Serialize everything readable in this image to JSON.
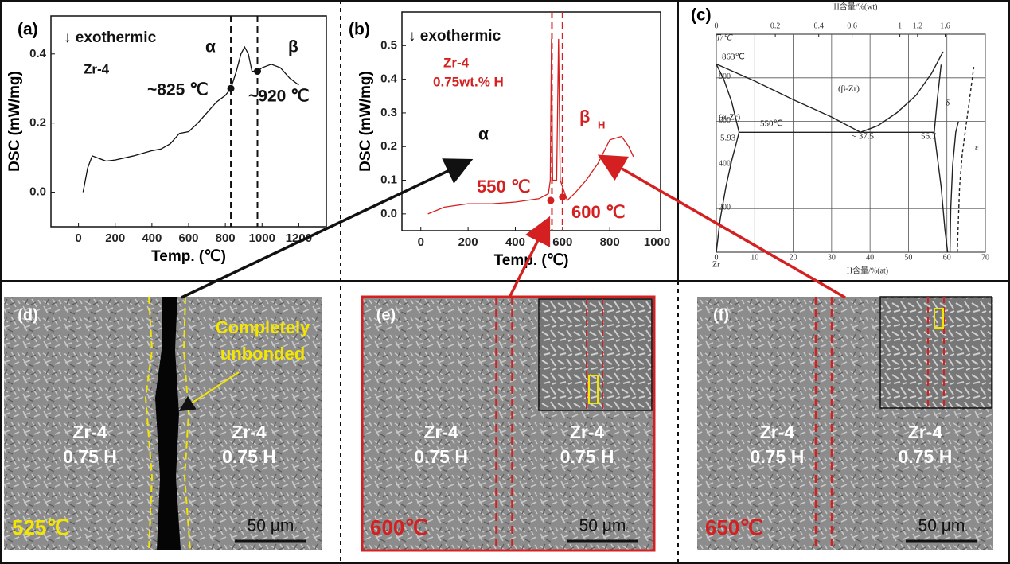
{
  "chart_data": [
    {
      "type": "line",
      "panel": "(a)",
      "xlabel": "Temp. (℃)",
      "ylabel": "DSC (mW/mg)",
      "x": [
        25,
        50,
        75,
        100,
        150,
        200,
        300,
        400,
        450,
        500,
        550,
        600,
        650,
        700,
        750,
        800,
        830,
        860,
        885,
        905,
        925,
        945,
        975,
        1000,
        1050,
        1100,
        1150,
        1200
      ],
      "values": [
        0.0,
        0.07,
        0.105,
        0.1,
        0.09,
        0.093,
        0.105,
        0.12,
        0.125,
        0.14,
        0.17,
        0.175,
        0.2,
        0.23,
        0.26,
        0.28,
        0.3,
        0.35,
        0.4,
        0.42,
        0.4,
        0.35,
        0.35,
        0.36,
        0.37,
        0.36,
        0.33,
        0.31
      ],
      "color": "#111111",
      "xlim": [
        -150,
        1350
      ],
      "ylim": [
        -0.1,
        0.51
      ],
      "xticks": [
        0,
        200,
        400,
        600,
        800,
        1000,
        1200
      ],
      "yticks": [
        {
          "value": 0,
          "label": "0.0"
        },
        0.2,
        0.4
      ],
      "vlines": [
        830,
        975
      ],
      "markers": {
        "x": [
          830,
          975
        ],
        "y": [
          0.3,
          0.35
        ]
      },
      "marker_color": "#111111",
      "annotations": [
        "↓ exothermic",
        "Zr-4",
        "α",
        "β",
        "~825 ℃",
        "~920 ℃"
      ]
    },
    {
      "type": "line",
      "panel": "(b)",
      "xlabel": "Temp. (℃)",
      "ylabel": "DSC (mW/mg)",
      "x": [
        30,
        100,
        200,
        300,
        400,
        500,
        540,
        548,
        553,
        558,
        575,
        583,
        590,
        620,
        650,
        700,
        750,
        800,
        850,
        880,
        900
      ],
      "values": [
        0.0,
        0.02,
        0.03,
        0.03,
        0.035,
        0.045,
        0.06,
        0.1,
        0.52,
        0.1,
        0.1,
        0.52,
        0.1,
        0.04,
        0.06,
        0.1,
        0.15,
        0.22,
        0.23,
        0.2,
        0.17
      ],
      "color": "#d42020",
      "xlim": [
        -80,
        1015
      ],
      "ylim": [
        -0.05,
        0.6
      ],
      "xticks": [
        0,
        200,
        400,
        600,
        800,
        1000
      ],
      "yticks": [
        {
          "value": 0,
          "label": "0.0"
        },
        0.1,
        0.2,
        0.3,
        0.4,
        0.5
      ],
      "vlines": [
        555,
        600
      ],
      "markers": {
        "x": [
          550,
          600
        ],
        "y": [
          0.04,
          0.05
        ]
      },
      "marker_color": "#d42020",
      "annotations": [
        "↓ exothermic",
        "Zr-4",
        "0.75wt.% H",
        "α",
        "β",
        "H",
        "550 ℃",
        "600 ℃"
      ]
    },
    {
      "type": "phase",
      "panel": "(c)",
      "xlabel": "H含量/%(at)",
      "x2label": "H含量/%(wt)",
      "ylabel": "T/℃",
      "xlim": [
        0,
        70
      ],
      "ylim": [
        0,
        1000
      ],
      "xticks": [
        0,
        10,
        20,
        30,
        40,
        50,
        60,
        70
      ],
      "x2ticks": [
        0,
        0.2,
        0.4,
        0.6,
        1,
        1.2,
        1.6
      ],
      "yticks": [
        200,
        400,
        600,
        800
      ],
      "grid": true,
      "series": [
        {
          "x": [
            0,
            2,
            4,
            5.93
          ],
          "values": [
            863,
            790,
            690,
            550
          ]
        },
        {
          "x": [
            0,
            1,
            2.5,
            4,
            5.2,
            5.93
          ],
          "values": [
            0,
            150,
            300,
            420,
            500,
            550
          ]
        },
        {
          "x": [
            0,
            10,
            20,
            30,
            37.5
          ],
          "values": [
            863,
            785,
            700,
            620,
            550
          ]
        },
        {
          "x": [
            37.5,
            42,
            47,
            52,
            56,
            59
          ],
          "values": [
            550,
            580,
            640,
            720,
            820,
            920
          ]
        },
        {
          "x": [
            5.93,
            56.7
          ],
          "values": [
            550,
            550
          ]
        },
        {
          "x": [
            56.7,
            57.5,
            58.5
          ],
          "values": [
            550,
            700,
            860
          ]
        },
        {
          "x": [
            56.7,
            58.5,
            59.5,
            60.2
          ],
          "values": [
            550,
            300,
            100,
            0
          ]
        },
        {
          "x": [
            60.8,
            61,
            61.5,
            62.3,
            63
          ],
          "values": [
            0,
            200,
            400,
            550,
            600
          ]
        },
        {
          "x": [
            62.7,
            63.3,
            64,
            65.5,
            67
          ],
          "values": [
            0,
            300,
            450,
            650,
            850
          ],
          "dash": true
        }
      ],
      "color": "#222222",
      "annotations": [
        "863℃",
        "(β-Zr)",
        "(α-Zr)",
        "550℃",
        "5.93",
        "~ 37.5",
        "56.7",
        "δ",
        "ε",
        "Zr"
      ]
    }
  ],
  "micrographs": [
    {
      "label": "(d)",
      "annotation": [
        "Completely",
        "unbonded"
      ],
      "left": [
        "Zr-4",
        "0.75 H"
      ],
      "right": [
        "Zr-4",
        "0.75 H"
      ],
      "temperature": "525℃",
      "scale_bar": "50 μm"
    },
    {
      "label": "(e)",
      "left": [
        "Zr-4",
        "0.75 H"
      ],
      "right": [
        "Zr-4",
        "0.75 H"
      ],
      "temperature": "600℃",
      "scale_bar": "50 μm"
    },
    {
      "label": "(f)",
      "left": [
        "Zr-4",
        "0.75 H"
      ],
      "right": [
        "Zr-4",
        "0.75 H"
      ],
      "temperature": "650℃",
      "scale_bar": "50 μm"
    }
  ]
}
